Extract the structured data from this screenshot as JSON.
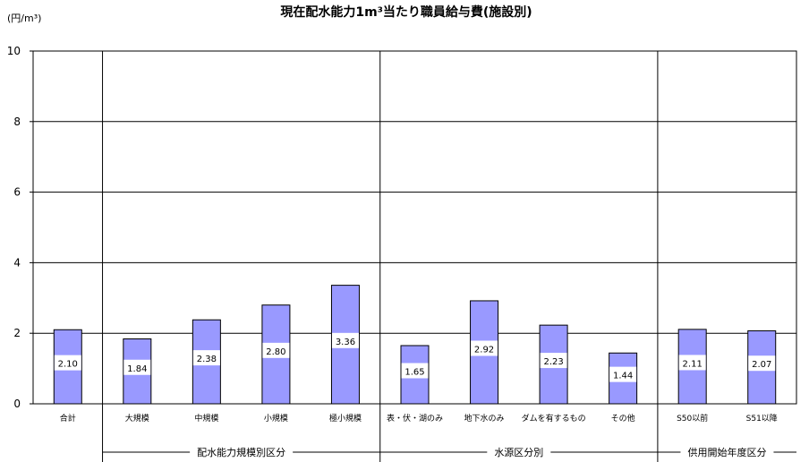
{
  "chart_data": {
    "type": "bar",
    "title": "現在配水能力1m³当たり職員給与費(施設別)",
    "unit_label": "(円/m³)",
    "ylim": [
      0,
      10
    ],
    "yticks": [
      "0",
      "2",
      "4",
      "6",
      "8",
      "10"
    ],
    "grid": true,
    "categories": [
      "合計",
      "大規模",
      "中規模",
      "小規模",
      "極小規模",
      "表・伏・湖のみ",
      "地下水のみ",
      "ダムを有するもの",
      "その他",
      "S50以前",
      "S51以降"
    ],
    "values": [
      2.1,
      1.84,
      2.38,
      2.8,
      3.36,
      1.65,
      2.92,
      2.23,
      1.44,
      2.11,
      2.07
    ],
    "data_labels": [
      "2.10",
      "1.84",
      "2.38",
      "2.80",
      "3.36",
      "1.65",
      "2.92",
      "2.23",
      "1.44",
      "2.11",
      "2.07"
    ],
    "groups": [
      {
        "name": "配水能力規模別区分",
        "from": 1,
        "to": 4
      },
      {
        "name": "水源区分別",
        "from": 5,
        "to": 8
      },
      {
        "name": "供用開始年度区分",
        "from": 9,
        "to": 10
      }
    ],
    "colors": {
      "bar": "#9999ff",
      "bar_border": "#000000",
      "grid": "#000000"
    }
  }
}
